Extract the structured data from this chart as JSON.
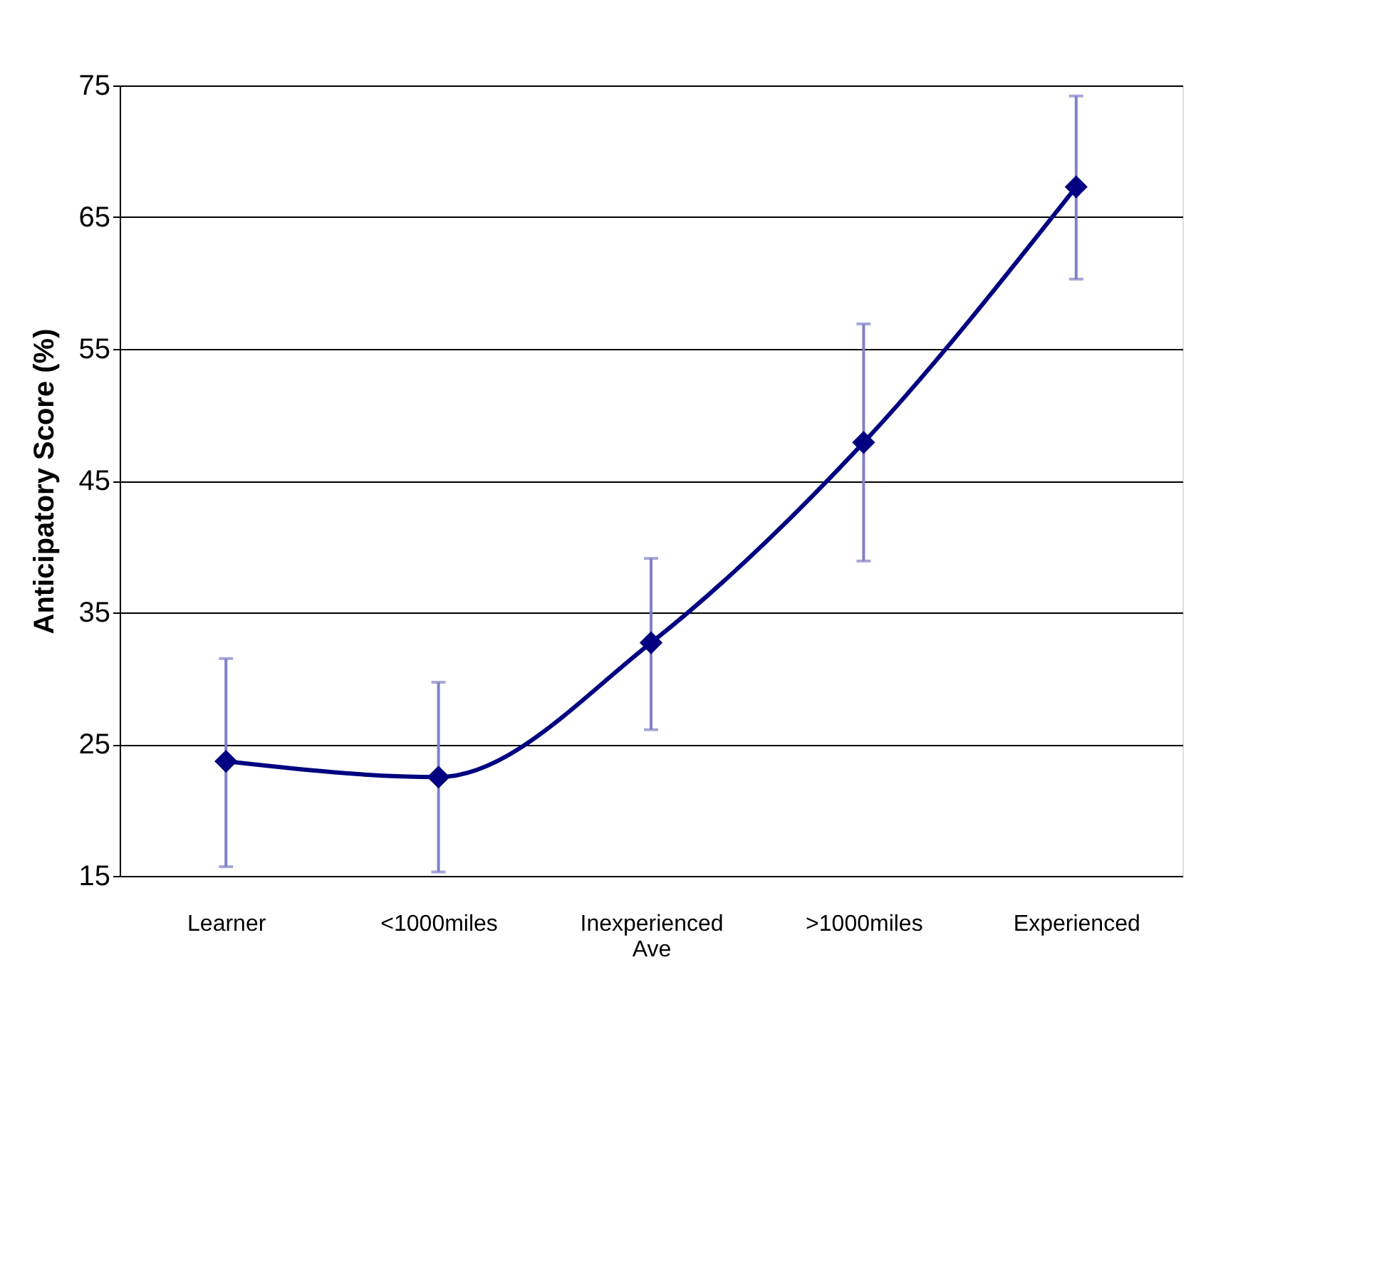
{
  "chart_data": {
    "type": "line",
    "ylabel": "Anticipatory Score (%)",
    "categories": [
      "Learner",
      "<1000miles",
      "Inexperienced Ave",
      ">1000miles",
      "Experienced"
    ],
    "series": [
      {
        "color": "#000080",
        "values": [
          23.7,
          22.5,
          32.7,
          47.9,
          67.3
        ],
        "errors": [
          [
            15.7,
            31.5
          ],
          [
            15.3,
            29.7
          ],
          [
            26.1,
            39.1
          ],
          [
            38.9,
            56.9
          ],
          [
            60.3,
            74.2
          ]
        ]
      }
    ],
    "ylim": [
      15,
      75
    ],
    "yticks": [
      15,
      25,
      35,
      45,
      55,
      65,
      75
    ],
    "grid": "y",
    "marker": "diamond",
    "line_style": "solid"
  }
}
